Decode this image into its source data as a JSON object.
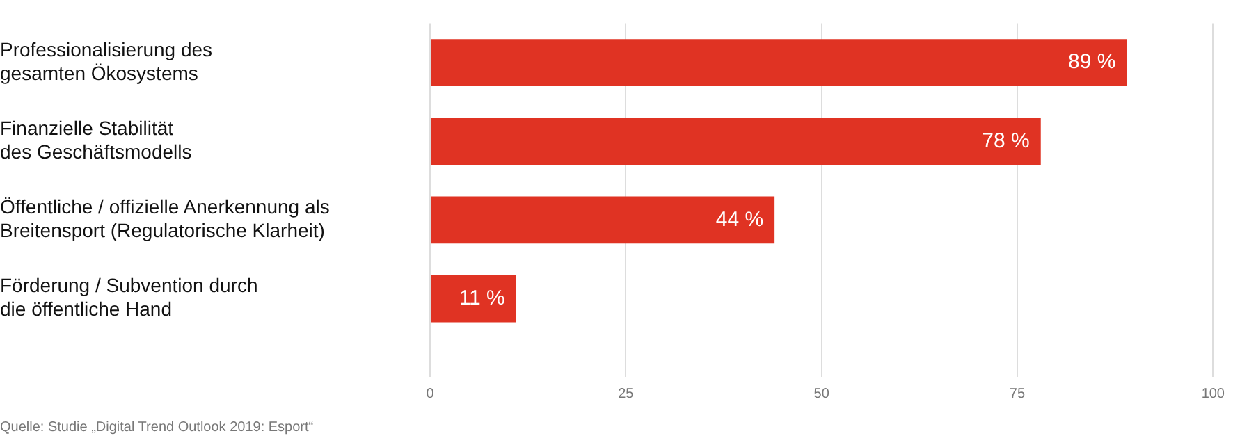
{
  "chart_data": {
    "type": "bar",
    "orientation": "horizontal",
    "categories": [
      "Professionalisierung des\ngesamten Ökosystems",
      "Finanzielle Stabilität\ndes Geschäftsmodells",
      "Öffentliche / offizielle Anerkennung als\nBreitensport (Regulatorische Klarheit)",
      "Förderung / Subvention durch\ndie öffentliche Hand"
    ],
    "values": [
      89,
      78,
      44,
      11
    ],
    "value_labels": [
      "89 %",
      "78 %",
      "44 %",
      "11 %"
    ],
    "color": "#e03323",
    "xlim": [
      0,
      100
    ],
    "xticks": [
      0,
      25,
      50,
      75,
      100
    ],
    "grid": "x",
    "legend": false,
    "annotations": [
      "Quelle: Studie „Digital Trend Outlook 2019: Esport“"
    ]
  }
}
